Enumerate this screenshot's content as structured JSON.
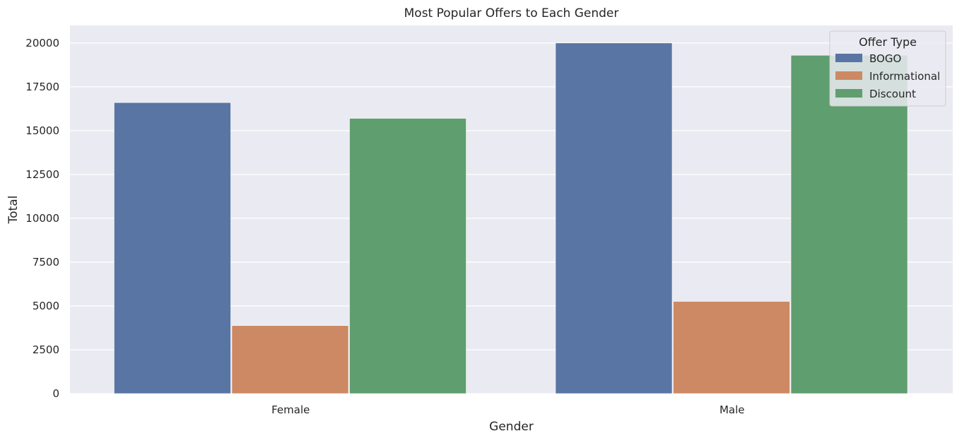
{
  "chart_data": {
    "type": "bar",
    "title": "Most Popular Offers to Each Gender",
    "xlabel": "Gender",
    "ylabel": "Total",
    "categories": [
      "Female",
      "Male"
    ],
    "series": [
      {
        "name": "BOGO",
        "values": [
          16600,
          20000
        ],
        "color": "#5975a4"
      },
      {
        "name": "Informational",
        "values": [
          3880,
          5260
        ],
        "color": "#cc8963"
      },
      {
        "name": "Discount",
        "values": [
          15700,
          19300
        ],
        "color": "#5f9e6e"
      }
    ],
    "ylim": [
      0,
      21000
    ],
    "yticks": [
      0,
      2500,
      5000,
      7500,
      10000,
      12500,
      15000,
      17500,
      20000
    ],
    "grid": true,
    "legend": {
      "title": "Offer Type",
      "placement": "top-right"
    },
    "colors": {
      "background": "#eaeaf2",
      "grid": "#ffffff",
      "text": "#262626"
    }
  }
}
